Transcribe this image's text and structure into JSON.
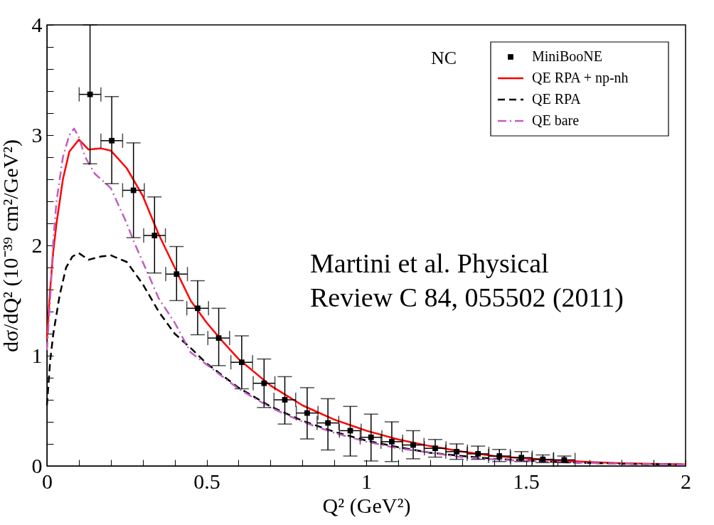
{
  "chart_data": {
    "type": "line",
    "xlabel": "Q² (GeV²)",
    "ylabel": "dσ/dQ² (10⁻³⁹ cm²/GeV²)",
    "xlim": [
      0,
      2
    ],
    "ylim": [
      0,
      4
    ],
    "xticks": [
      0,
      {
        "value": 0.1,
        "label": null
      },
      {
        "value": 0.2,
        "label": null
      },
      {
        "value": 0.3,
        "label": null
      },
      {
        "value": 0.4,
        "label": null
      },
      0.5,
      {
        "value": 0.6,
        "label": null
      },
      {
        "value": 0.7,
        "label": null
      },
      {
        "value": 0.8,
        "label": null
      },
      {
        "value": 0.9,
        "label": null
      },
      1,
      {
        "value": 1.1,
        "label": null
      },
      {
        "value": 1.2,
        "label": null
      },
      {
        "value": 1.3,
        "label": null
      },
      {
        "value": 1.4,
        "label": null
      },
      1.5,
      {
        "value": 1.6,
        "label": null
      },
      {
        "value": 1.7,
        "label": null
      },
      {
        "value": 1.8,
        "label": null
      },
      {
        "value": 1.9,
        "label": null
      },
      2
    ],
    "yticks": [
      0,
      {
        "value": 0.2,
        "label": null
      },
      {
        "value": 0.4,
        "label": null
      },
      {
        "value": 0.6,
        "label": null
      },
      {
        "value": 0.8,
        "label": null
      },
      1,
      {
        "value": 1.2,
        "label": null
      },
      {
        "value": 1.4,
        "label": null
      },
      {
        "value": 1.6,
        "label": null
      },
      {
        "value": 1.8,
        "label": null
      },
      2,
      {
        "value": 2.2,
        "label": null
      },
      {
        "value": 2.4,
        "label": null
      },
      {
        "value": 2.6,
        "label": null
      },
      {
        "value": 2.8,
        "label": null
      },
      3,
      {
        "value": 3.2,
        "label": null
      },
      {
        "value": 3.4,
        "label": null
      },
      {
        "value": 3.6,
        "label": null
      },
      {
        "value": 3.8,
        "label": null
      },
      4
    ],
    "grid": false,
    "legend": "top right",
    "annotations": [
      "NC",
      "Martini et al. Physical\nReview C 84, 055502 (2011)"
    ],
    "series": [
      {
        "name": "MiniBooNE",
        "type": "scatter",
        "marker": "square",
        "color": "#000000",
        "x": [
          0.135,
          0.203,
          0.271,
          0.337,
          0.406,
          0.472,
          0.538,
          0.61,
          0.68,
          0.745,
          0.815,
          0.88,
          0.95,
          1.015,
          1.08,
          1.147,
          1.216,
          1.283,
          1.35,
          1.417,
          1.486,
          1.553,
          1.62
        ],
        "values": [
          3.37,
          2.95,
          2.5,
          2.09,
          1.74,
          1.43,
          1.16,
          0.94,
          0.75,
          0.6,
          0.48,
          0.39,
          0.32,
          0.26,
          0.22,
          0.19,
          0.16,
          0.13,
          0.11,
          0.09,
          0.075,
          0.06,
          0.055
        ],
        "errors": [
          [
            2.74,
            4.0
          ],
          [
            2.56,
            3.35
          ],
          [
            2.07,
            2.93
          ],
          [
            1.75,
            2.44
          ],
          [
            1.5,
            1.99
          ],
          [
            1.19,
            1.68
          ],
          [
            0.91,
            1.43
          ],
          [
            0.7,
            1.18
          ],
          [
            0.53,
            0.97
          ],
          [
            0.38,
            0.81
          ],
          [
            0.245,
            0.71
          ],
          [
            0.145,
            0.61
          ],
          [
            0.09,
            0.54
          ],
          [
            0.045,
            0.47
          ],
          [
            0.04,
            0.4
          ],
          [
            0.065,
            0.32
          ],
          [
            0.08,
            0.24
          ],
          [
            0.06,
            0.2
          ],
          [
            0.06,
            0.18
          ],
          [
            0.04,
            0.15
          ],
          [
            0.04,
            0.13
          ],
          [
            0.03,
            0.1
          ],
          [
            0.03,
            0.09
          ]
        ],
        "xerrors": [
          0.034,
          0.034,
          0.034,
          0.034,
          0.034,
          0.034,
          0.034,
          0.034,
          0.034,
          0.034,
          0.034,
          0.034,
          0.034,
          0.034,
          0.034,
          0.034,
          0.034,
          0.034,
          0.034,
          0.034,
          0.034,
          0.034,
          0.034
        ]
      },
      {
        "name": "QE RPA + np-nh",
        "type": "line",
        "line_style": "solid",
        "color": "#ff0000",
        "x": [
          0,
          0.01,
          0.02,
          0.03,
          0.05,
          0.07,
          0.1,
          0.13,
          0.17,
          0.2,
          0.25,
          0.3,
          0.35,
          0.4,
          0.45,
          0.5,
          0.55,
          0.6,
          0.7,
          0.8,
          0.9,
          1.0,
          1.1,
          1.2,
          1.3,
          1.4,
          1.5,
          1.6,
          1.7,
          1.8,
          1.9,
          2.0
        ],
        "values": [
          1.15,
          1.6,
          1.95,
          2.2,
          2.6,
          2.85,
          2.96,
          2.87,
          2.88,
          2.86,
          2.7,
          2.45,
          2.1,
          1.8,
          1.5,
          1.3,
          1.13,
          0.97,
          0.73,
          0.55,
          0.42,
          0.32,
          0.24,
          0.18,
          0.13,
          0.09,
          0.07,
          0.05,
          0.035,
          0.025,
          0.02,
          0.015
        ]
      },
      {
        "name": "QE RPA",
        "type": "line",
        "line_style": "dashed",
        "color": "#000000",
        "x": [
          0,
          0.01,
          0.02,
          0.04,
          0.06,
          0.08,
          0.1,
          0.13,
          0.17,
          0.2,
          0.25,
          0.3,
          0.35,
          0.4,
          0.45,
          0.5,
          0.6,
          0.7,
          0.8,
          0.9,
          1.0,
          1.1,
          1.2,
          1.3,
          1.4,
          1.5,
          1.6,
          1.8,
          2.0
        ],
        "values": [
          0.55,
          0.95,
          1.2,
          1.55,
          1.8,
          1.9,
          1.93,
          1.87,
          1.9,
          1.91,
          1.85,
          1.65,
          1.4,
          1.2,
          1.07,
          0.93,
          0.71,
          0.54,
          0.41,
          0.31,
          0.23,
          0.17,
          0.12,
          0.09,
          0.065,
          0.05,
          0.035,
          0.02,
          0.012
        ]
      },
      {
        "name": "QE bare",
        "type": "line",
        "line_style": "dashdot",
        "color": "#bf5fbf",
        "x": [
          0,
          0.01,
          0.02,
          0.03,
          0.05,
          0.07,
          0.085,
          0.1,
          0.12,
          0.15,
          0.2,
          0.25,
          0.27,
          0.3,
          0.32,
          0.35,
          0.4,
          0.45,
          0.5,
          0.6,
          0.7,
          0.8,
          0.9,
          1.0,
          1.1,
          1.2,
          1.3,
          1.4,
          1.5,
          1.6,
          1.8,
          2.0
        ],
        "values": [
          1.05,
          1.5,
          2.05,
          2.4,
          2.8,
          3.0,
          3.06,
          2.98,
          2.8,
          2.65,
          2.52,
          2.2,
          2.05,
          1.85,
          1.72,
          1.52,
          1.3,
          1.03,
          0.92,
          0.7,
          0.53,
          0.4,
          0.3,
          0.22,
          0.16,
          0.12,
          0.08,
          0.06,
          0.045,
          0.035,
          0.02,
          0.012
        ]
      }
    ]
  }
}
